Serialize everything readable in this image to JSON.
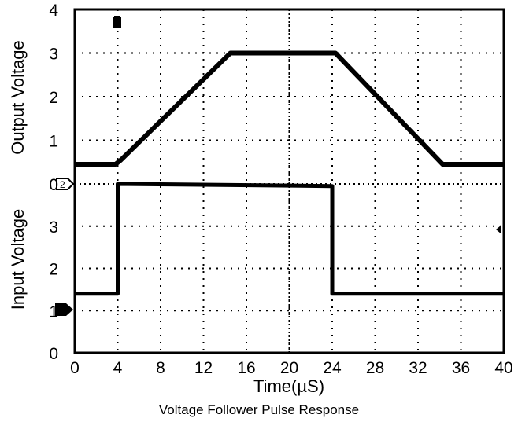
{
  "caption": "Voltage Follower Pulse Response",
  "chart_data": {
    "type": "line",
    "x_axis": {
      "label": "Time(µS)",
      "range": [
        0,
        40
      ],
      "ticks": [
        0,
        4,
        8,
        12,
        16,
        20,
        24,
        28,
        32,
        36,
        40
      ],
      "tick_labels": [
        "0",
        "4",
        "8",
        "12",
        "16",
        "20",
        "24",
        "28",
        "32",
        "36",
        "40"
      ]
    },
    "panels": [
      {
        "ylabel": "Output Voltage",
        "ylim": [
          0,
          4
        ],
        "ticks": [
          0,
          1,
          2,
          3,
          4
        ],
        "tick_labels": [
          "0",
          "1",
          "2",
          "3",
          "4"
        ],
        "grid": true,
        "series": [
          {
            "x": [
              0,
              3.8,
              4.3,
              14.5,
              24.0,
              24.3,
              34.3,
              40
            ],
            "y": [
              0.45,
              0.45,
              0.55,
              3.0,
              3.0,
              3.0,
              0.45,
              0.45
            ]
          }
        ]
      },
      {
        "ylabel": "Input Voltage",
        "ylim": [
          0,
          4
        ],
        "ticks": [
          0,
          1,
          2,
          3
        ],
        "tick_labels": [
          "0",
          "1",
          "2",
          "3"
        ],
        "grid": true,
        "series": [
          {
            "x": [
              0,
              4.0,
              4.0,
              24.0,
              24.0,
              40
            ],
            "y": [
              1.4,
              1.4,
              4.0,
              3.95,
              1.4,
              1.4
            ]
          }
        ]
      }
    ]
  }
}
